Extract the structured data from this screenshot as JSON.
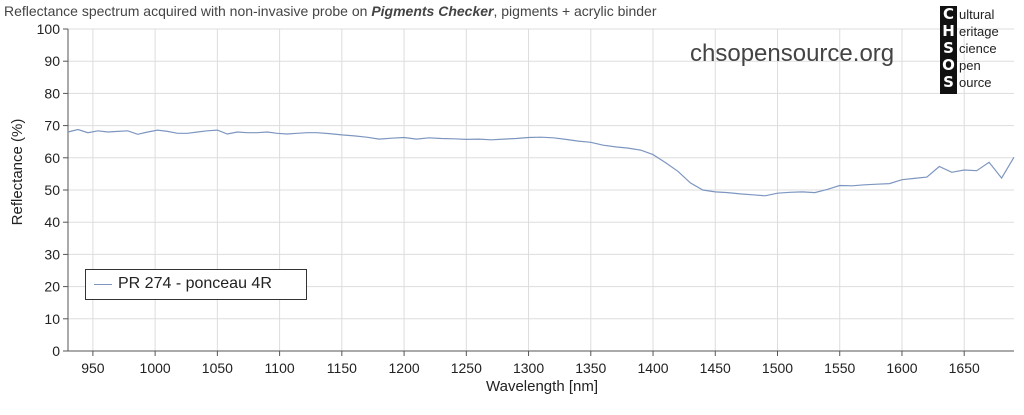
{
  "header": {
    "title_prefix": "Reflectance spectrum acquired with non-invasive probe on ",
    "title_bold": "Pigments Checker",
    "title_suffix": ", pigments + acrylic binder",
    "site": "chsopensource.org"
  },
  "logo": {
    "rows": [
      {
        "letter": "C",
        "word": "ultural"
      },
      {
        "letter": "H",
        "word": "eritage"
      },
      {
        "letter": "S",
        "word": "cience"
      },
      {
        "letter": "O",
        "word": "pen"
      },
      {
        "letter": "S",
        "word": "ource"
      }
    ]
  },
  "chart_data": {
    "type": "line",
    "xlabel": "Wavelength [nm]",
    "ylabel": "Reflectance (%)",
    "xlim": [
      930,
      1690
    ],
    "ylim": [
      0,
      100
    ],
    "xticks": [
      950,
      1000,
      1050,
      1100,
      1150,
      1200,
      1250,
      1300,
      1350,
      1400,
      1450,
      1500,
      1550,
      1600,
      1650
    ],
    "yticks": [
      0,
      10,
      20,
      30,
      40,
      50,
      60,
      70,
      80,
      90,
      100
    ],
    "grid": true,
    "legend_position": "lower-left",
    "series": [
      {
        "name": "PR 274 - ponceau 4R",
        "color": "#7d96c0",
        "x": [
          930,
          938,
          946,
          954,
          962,
          970,
          978,
          986,
          994,
          1002,
          1010,
          1018,
          1026,
          1034,
          1042,
          1050,
          1058,
          1066,
          1074,
          1082,
          1090,
          1098,
          1106,
          1114,
          1122,
          1130,
          1140,
          1150,
          1160,
          1170,
          1180,
          1190,
          1200,
          1210,
          1220,
          1230,
          1240,
          1250,
          1260,
          1270,
          1280,
          1290,
          1300,
          1310,
          1320,
          1330,
          1340,
          1350,
          1360,
          1370,
          1380,
          1390,
          1400,
          1410,
          1420,
          1430,
          1440,
          1450,
          1460,
          1470,
          1480,
          1490,
          1500,
          1510,
          1520,
          1530,
          1540,
          1550,
          1560,
          1570,
          1580,
          1590,
          1600,
          1610,
          1620,
          1630,
          1640,
          1650,
          1660,
          1670,
          1680,
          1690
        ],
        "values": [
          68,
          68.8,
          67.8,
          68.4,
          68.0,
          68.2,
          68.4,
          67.3,
          68.0,
          68.6,
          68.2,
          67.6,
          67.6,
          68.0,
          68.4,
          68.6,
          67.4,
          68.0,
          67.8,
          67.8,
          68.0,
          67.6,
          67.4,
          67.6,
          67.8,
          67.8,
          67.5,
          67.1,
          66.8,
          66.4,
          65.8,
          66.1,
          66.3,
          65.8,
          66.2,
          66.0,
          65.9,
          65.7,
          65.8,
          65.6,
          65.8,
          66.0,
          66.3,
          66.4,
          66.2,
          65.7,
          65.2,
          64.8,
          63.9,
          63.4,
          63.0,
          62.4,
          61.0,
          58.5,
          55.8,
          52.2,
          50.0,
          49.4,
          49.2,
          48.8,
          48.5,
          48.2,
          49.0,
          49.3,
          49.4,
          49.2,
          50.2,
          51.4,
          51.3,
          51.6,
          51.8,
          52.0,
          53.2,
          53.6,
          54.0,
          57.3,
          55.5,
          56.2,
          56.0,
          58.6,
          53.7,
          60.2
        ]
      }
    ]
  }
}
